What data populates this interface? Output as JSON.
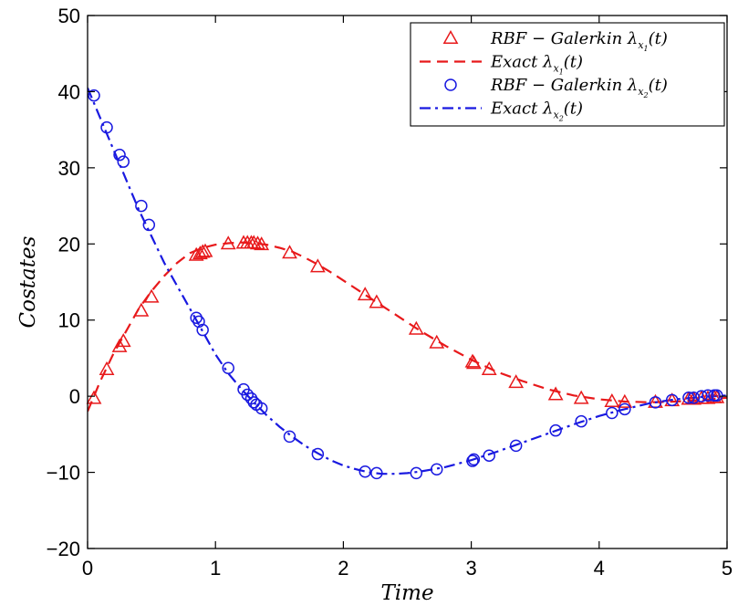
{
  "chart_data": {
    "type": "line",
    "xlabel": "Time",
    "ylabel": "Costates",
    "xlim": [
      0,
      5
    ],
    "ylim": [
      -20,
      50
    ],
    "xticks": [
      "0",
      "1",
      "2",
      "3",
      "4",
      "5"
    ],
    "yticks": [
      "−20",
      "−10",
      "0",
      "10",
      "20",
      "30",
      "40",
      "50"
    ],
    "grid": false,
    "legend_position": "top-right",
    "colors": {
      "lambda1": "#e8191b",
      "lambda2": "#1919e0"
    },
    "legend": [
      {
        "main": "RBF − Galerkin λ",
        "sub": "x",
        "subsub": "1",
        "tail": "(t)",
        "marker": "triangle",
        "color": "#e8191b"
      },
      {
        "main": "Exact λ",
        "sub": "x",
        "subsub": "1",
        "tail": "(t)",
        "line": "dashed",
        "color": "#e8191b"
      },
      {
        "main": "RBF − Galerkin λ",
        "sub": "x",
        "subsub": "2",
        "tail": "(t)",
        "marker": "circle",
        "color": "#1919e0"
      },
      {
        "main": "Exact λ",
        "sub": "x",
        "subsub": "2",
        "tail": "(t)",
        "line": "dashdot",
        "color": "#1919e0"
      }
    ],
    "series": [
      {
        "name": "Exact λx1(t)",
        "style": "dashed",
        "x": [
          0,
          0.1,
          0.2,
          0.3,
          0.4,
          0.5,
          0.6,
          0.7,
          0.8,
          0.9,
          1.0,
          1.1,
          1.2,
          1.3,
          1.4,
          1.5,
          1.6,
          1.7,
          1.8,
          1.9,
          2.0,
          2.2,
          2.4,
          2.6,
          2.8,
          3.0,
          3.2,
          3.4,
          3.6,
          3.8,
          4.0,
          4.2,
          4.4,
          4.6,
          4.8,
          5.0
        ],
        "y": [
          -2,
          2,
          5.5,
          8.5,
          11.5,
          13.8,
          15.8,
          17.5,
          18.8,
          19.5,
          19.9,
          20.1,
          20.2,
          20.1,
          19.9,
          19.5,
          19,
          18.2,
          17.3,
          16.3,
          15.2,
          13,
          10.8,
          8.6,
          6.6,
          4.8,
          3.2,
          2,
          0.9,
          0.1,
          -0.4,
          -0.7,
          -0.8,
          -0.7,
          -0.5,
          -0.2
        ]
      },
      {
        "name": "Exact λx2(t)",
        "style": "dashdot",
        "x": [
          0,
          0.1,
          0.2,
          0.3,
          0.4,
          0.5,
          0.6,
          0.7,
          0.8,
          0.9,
          1.0,
          1.1,
          1.2,
          1.3,
          1.4,
          1.5,
          1.6,
          1.7,
          1.8,
          1.9,
          2.0,
          2.1,
          2.2,
          2.3,
          2.4,
          2.5,
          2.6,
          2.8,
          3.0,
          3.2,
          3.4,
          3.6,
          3.8,
          4.0,
          4.2,
          4.4,
          4.6,
          4.8,
          5.0
        ],
        "y": [
          40.5,
          36.5,
          32.5,
          28.5,
          24.5,
          21,
          17.5,
          14.5,
          11.5,
          8.5,
          5.5,
          3,
          1,
          -0.8,
          -2.5,
          -4,
          -5.3,
          -6.5,
          -7.5,
          -8.4,
          -9.1,
          -9.6,
          -10,
          -10.2,
          -10.2,
          -10.1,
          -9.9,
          -9.3,
          -8.4,
          -7.3,
          -6.1,
          -4.9,
          -3.7,
          -2.6,
          -1.7,
          -0.9,
          -0.4,
          -0.1,
          0.1
        ]
      }
    ],
    "markers": [
      {
        "name": "RBF − Galerkin λx1(t)",
        "shape": "triangle",
        "x": [
          0.05,
          0.15,
          0.25,
          0.28,
          0.42,
          0.5,
          0.85,
          0.88,
          0.9,
          0.92,
          1.1,
          1.22,
          1.25,
          1.28,
          1.3,
          1.33,
          1.36,
          1.58,
          1.8,
          2.17,
          2.26,
          2.57,
          2.73,
          3.01,
          3.02,
          3.14,
          3.35,
          3.66,
          3.86,
          4.1,
          4.2,
          4.44,
          4.57,
          4.7,
          4.74,
          4.8,
          4.85,
          4.9,
          4.92
        ],
        "y": [
          -0.3,
          3.5,
          6.5,
          7.2,
          11.2,
          13,
          18.5,
          18.7,
          18.9,
          19,
          20,
          20.1,
          20.1,
          20.1,
          20.1,
          20,
          19.9,
          18.8,
          17,
          13.3,
          12.3,
          8.8,
          7,
          4.5,
          4.3,
          3.5,
          1.8,
          0.2,
          -0.3,
          -0.7,
          -0.8,
          -0.8,
          -0.6,
          -0.4,
          -0.4,
          -0.3,
          -0.3,
          -0.2,
          -0.2
        ]
      },
      {
        "name": "RBF − Galerkin λx2(t)",
        "shape": "circle",
        "x": [
          0.05,
          0.15,
          0.25,
          0.28,
          0.42,
          0.48,
          0.85,
          0.87,
          0.9,
          1.1,
          1.22,
          1.25,
          1.28,
          1.3,
          1.32,
          1.36,
          1.58,
          1.8,
          2.17,
          2.26,
          2.57,
          2.73,
          3.01,
          3.02,
          3.14,
          3.35,
          3.66,
          3.86,
          4.1,
          4.2,
          4.44,
          4.57,
          4.7,
          4.74,
          4.8,
          4.85,
          4.9,
          4.92
        ],
        "y": [
          39.5,
          35.3,
          31.7,
          30.8,
          25,
          22.5,
          10.3,
          9.8,
          8.7,
          3.7,
          0.9,
          0.2,
          -0.3,
          -0.8,
          -1.1,
          -1.6,
          -5.3,
          -7.6,
          -9.9,
          -10.1,
          -10.1,
          -9.6,
          -8.5,
          -8.3,
          -7.8,
          -6.5,
          -4.5,
          -3.3,
          -2.2,
          -1.7,
          -0.8,
          -0.5,
          -0.2,
          -0.2,
          0,
          0.1,
          0.1,
          0.1
        ]
      }
    ]
  }
}
